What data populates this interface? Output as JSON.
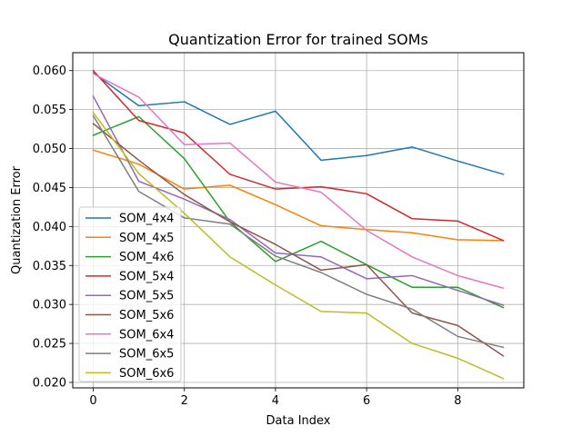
{
  "chart_data": {
    "type": "line",
    "title": "Quantization Error for trained SOMs",
    "xlabel": "Data Index",
    "ylabel": "Quantization Error",
    "x": [
      0,
      1,
      2,
      3,
      4,
      5,
      6,
      7,
      8,
      9
    ],
    "xticks": [
      0,
      2,
      4,
      6,
      8
    ],
    "xtick_labels": [
      "0",
      "2",
      "4",
      "6",
      "8"
    ],
    "yticks": [
      0.02,
      0.025,
      0.03,
      0.035,
      0.04,
      0.045,
      0.05,
      0.055,
      0.06
    ],
    "ytick_labels": [
      "0.020",
      "0.025",
      "0.030",
      "0.035",
      "0.040",
      "0.045",
      "0.050",
      "0.055",
      "0.060"
    ],
    "xlim": [
      -0.45,
      9.45
    ],
    "ylim": [
      0.0193,
      0.0623
    ],
    "grid": true,
    "legend_position": "lower-left",
    "series": [
      {
        "name": "SOM_4x4",
        "color": "#1f77b4",
        "values": [
          0.0597,
          0.0555,
          0.056,
          0.0531,
          0.0548,
          0.0485,
          0.0491,
          0.0502,
          0.0484,
          0.0467
        ]
      },
      {
        "name": "SOM_4x5",
        "color": "#ff7f0e",
        "values": [
          0.0498,
          0.048,
          0.0448,
          0.0453,
          0.0428,
          0.0401,
          0.0396,
          0.0392,
          0.0383,
          0.0382
        ]
      },
      {
        "name": "SOM_4x6",
        "color": "#2ca02c",
        "values": [
          0.0517,
          0.0541,
          0.0487,
          0.0406,
          0.0355,
          0.0381,
          0.0351,
          0.0322,
          0.0322,
          0.0296
        ]
      },
      {
        "name": "SOM_5x4",
        "color": "#d62728",
        "values": [
          0.06,
          0.0536,
          0.052,
          0.0467,
          0.0448,
          0.0451,
          0.0442,
          0.041,
          0.0407,
          0.0382
        ]
      },
      {
        "name": "SOM_5x5",
        "color": "#9467bd",
        "values": [
          0.0567,
          0.0458,
          0.0435,
          0.0409,
          0.0366,
          0.0361,
          0.0333,
          0.0337,
          0.0318,
          0.0299
        ]
      },
      {
        "name": "SOM_5x6",
        "color": "#8c564b",
        "values": [
          0.0532,
          0.0485,
          0.0441,
          0.0406,
          0.0377,
          0.0344,
          0.0351,
          0.0289,
          0.0273,
          0.0234
        ]
      },
      {
        "name": "SOM_6x4",
        "color": "#e377c2",
        "values": [
          0.0596,
          0.0566,
          0.0505,
          0.0507,
          0.0457,
          0.0444,
          0.0395,
          0.0361,
          0.0337,
          0.0321
        ]
      },
      {
        "name": "SOM_6x5",
        "color": "#7f7f7f",
        "values": [
          0.0542,
          0.0445,
          0.0411,
          0.0403,
          0.0362,
          0.0341,
          0.0313,
          0.0294,
          0.0259,
          0.0245
        ]
      },
      {
        "name": "SOM_6x6",
        "color": "#bcbd22",
        "values": [
          0.0546,
          0.0468,
          0.0417,
          0.0361,
          0.0325,
          0.0291,
          0.0289,
          0.025,
          0.0231,
          0.0205
        ]
      }
    ]
  }
}
